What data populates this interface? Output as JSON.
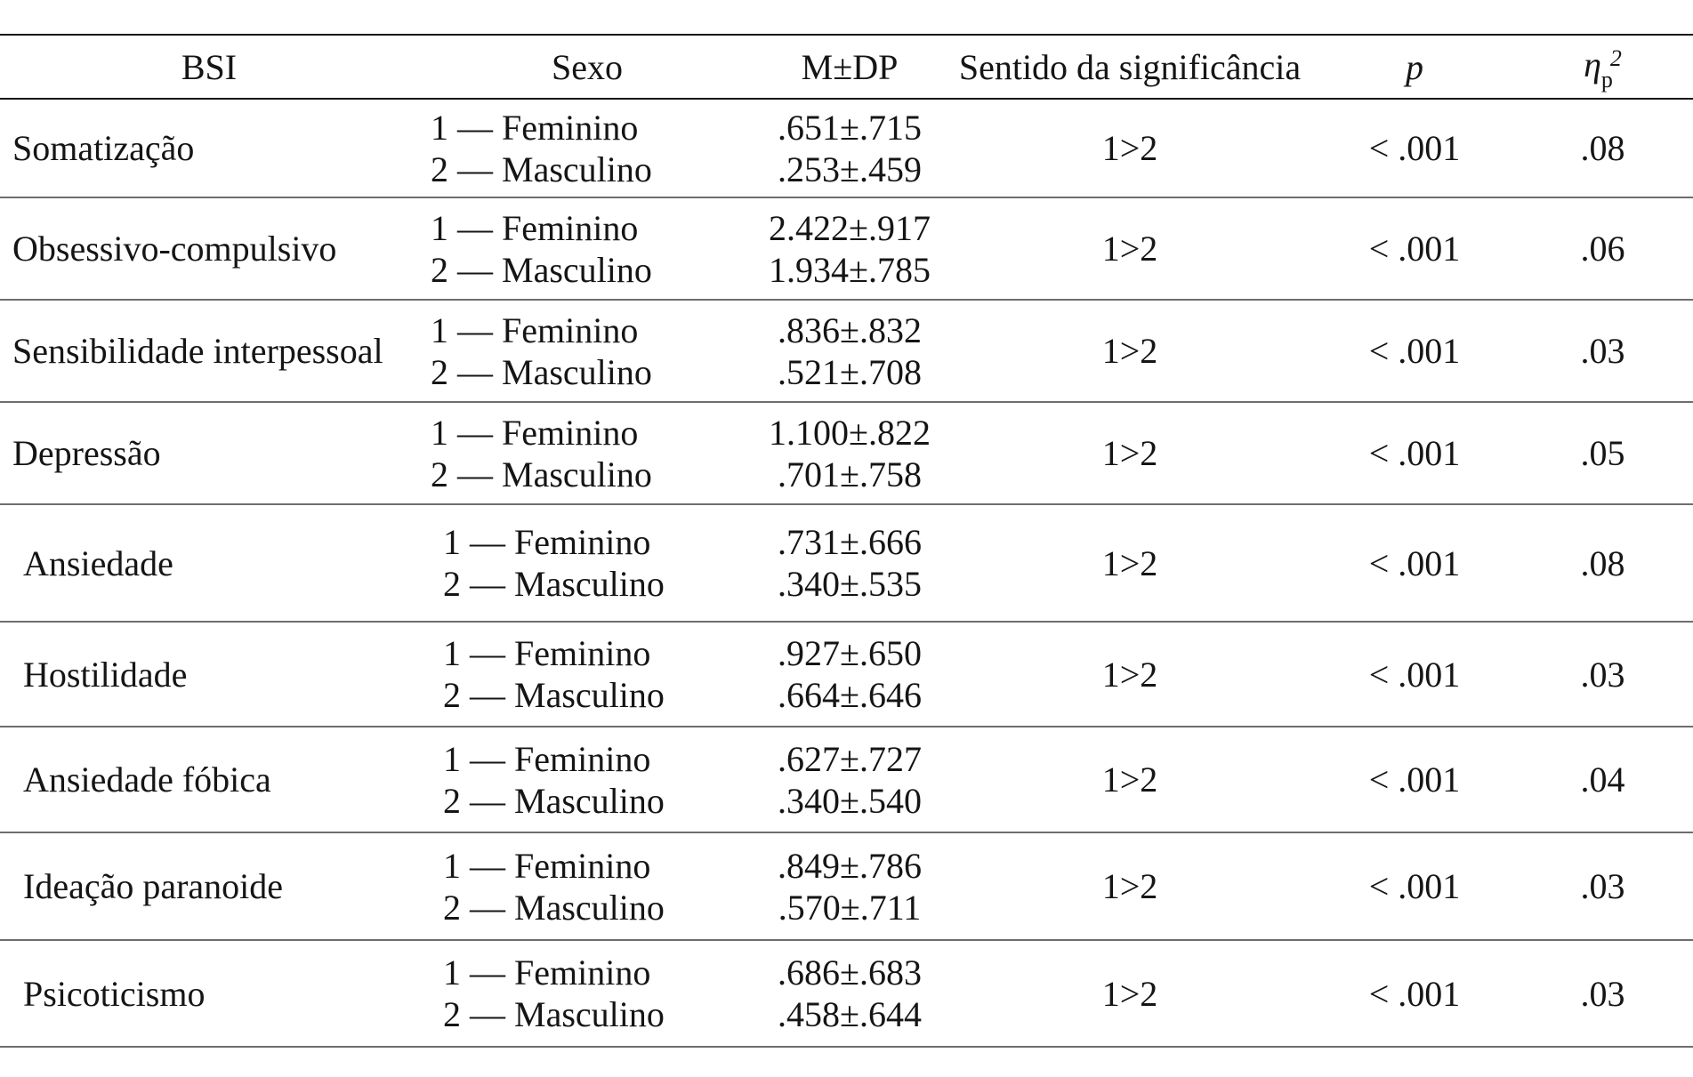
{
  "table": {
    "headers": {
      "bsi": "BSI",
      "sexo": "Sexo",
      "mdp": "M±DP",
      "sentido": "Sentido da significância",
      "p": "p",
      "eta_symbol": "η",
      "eta_sub": "p",
      "eta_sup": "2"
    },
    "rows": [
      {
        "name": "Somatização",
        "sex1": "1 — Feminino",
        "sex2": "2 — Masculino",
        "m1": ".651±.715",
        "m2": ".253±.459",
        "dir": "1>2",
        "p": "< .001",
        "eta": ".08"
      },
      {
        "name": "Obsessivo-compulsivo",
        "sex1": "1 — Feminino",
        "sex2": "2 — Masculino",
        "m1": "2.422±.917",
        "m2": "1.934±.785",
        "dir": "1>2",
        "p": "< .001",
        "eta": ".06"
      },
      {
        "name": "Sensibilidade interpessoal",
        "sex1": "1 — Feminino",
        "sex2": "2 — Masculino",
        "m1": ".836±.832",
        "m2": ".521±.708",
        "dir": "1>2",
        "p": "< .001",
        "eta": ".03"
      },
      {
        "name": "Depressão",
        "sex1": "1 — Feminino",
        "sex2": "2 — Masculino",
        "m1": "1.100±.822",
        "m2": ".701±.758",
        "dir": "1>2",
        "p": "< .001",
        "eta": ".05"
      },
      {
        "name": "Ansiedade",
        "sex1": "1 — Feminino",
        "sex2": "2 — Masculino",
        "m1": ".731±.666",
        "m2": ".340±.535",
        "dir": "1>2",
        "p": "< .001",
        "eta": ".08"
      },
      {
        "name": "Hostilidade",
        "sex1": "1 — Feminino",
        "sex2": "2 — Masculino",
        "m1": ".927±.650",
        "m2": ".664±.646",
        "dir": "1>2",
        "p": "< .001",
        "eta": ".03"
      },
      {
        "name": "Ansiedade fóbica",
        "sex1": "1 — Feminino",
        "sex2": "2 — Masculino",
        "m1": ".627±.727",
        "m2": ".340±.540",
        "dir": "1>2",
        "p": "< .001",
        "eta": ".04"
      },
      {
        "name": "Ideação paranoide",
        "sex1": "1 — Feminino",
        "sex2": "2 — Masculino",
        "m1": ".849±.786",
        "m2": ".570±.711",
        "dir": "1>2",
        "p": "< .001",
        "eta": ".03"
      },
      {
        "name": "Psicoticismo",
        "sex1": "1 — Feminino",
        "sex2": "2 — Masculino",
        "m1": ".686±.683",
        "m2": ".458±.644",
        "dir": "1>2",
        "p": "< .001",
        "eta": ".03"
      }
    ],
    "colors": {
      "header_rule": "#141414",
      "row_rule": "#6e6e6e",
      "text": "#151515",
      "background": "#ffffff"
    }
  }
}
